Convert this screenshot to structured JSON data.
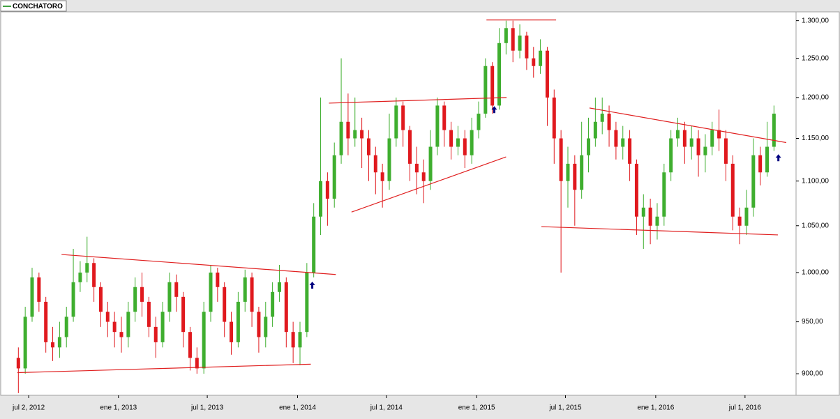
{
  "chart_data": {
    "type": "candlestick",
    "log": true,
    "grid": false,
    "legend": "top-left",
    "xlim": [
      "2012-05-06",
      "2016-10-13"
    ],
    "xticks": [
      {
        "value": "2012-07-02",
        "label": "jul 2, 2012"
      },
      {
        "value": "2013-01-01",
        "label": "ene 1, 2013"
      },
      {
        "value": "2013-07-01",
        "label": "jul 1, 2013"
      },
      {
        "value": "2014-01-01",
        "label": "ene 1, 2014"
      },
      {
        "value": "2014-07-01",
        "label": "jul 1, 2014"
      },
      {
        "value": "2015-01-01",
        "label": "ene 1, 2015"
      },
      {
        "value": "2015-07-01",
        "label": "jul 1, 2015"
      },
      {
        "value": "2016-01-01",
        "label": "ene 1, 2016"
      },
      {
        "value": "2016-07-01",
        "label": "jul 1, 2016"
      }
    ],
    "ylim": [
      880,
      1312
    ],
    "yticks": [
      {
        "value": 900,
        "label": "900,00"
      },
      {
        "value": 950,
        "label": "950,00"
      },
      {
        "value": 1000,
        "label": "1.000,00"
      },
      {
        "value": 1050,
        "label": "1.050,00"
      },
      {
        "value": 1100,
        "label": "1.100,00"
      },
      {
        "value": 1150,
        "label": "1.150,00"
      },
      {
        "value": 1200,
        "label": "1.200,00"
      },
      {
        "value": 1250,
        "label": "1.250,00"
      },
      {
        "value": 1300,
        "label": "1.300,00"
      }
    ],
    "x": [
      "2012-06-11",
      "2012-06-25",
      "2012-07-09",
      "2012-07-23",
      "2012-08-06",
      "2012-08-20",
      "2012-09-03",
      "2012-09-17",
      "2012-10-01",
      "2012-10-15",
      "2012-10-29",
      "2012-11-12",
      "2012-11-26",
      "2012-12-10",
      "2012-12-24",
      "2013-01-07",
      "2013-01-21",
      "2013-02-04",
      "2013-02-18",
      "2013-03-04",
      "2013-03-18",
      "2013-04-01",
      "2013-04-15",
      "2013-04-29",
      "2013-05-13",
      "2013-05-27",
      "2013-06-10",
      "2013-06-24",
      "2013-07-08",
      "2013-07-22",
      "2013-08-05",
      "2013-08-19",
      "2013-09-02",
      "2013-09-16",
      "2013-09-30",
      "2013-10-14",
      "2013-10-28",
      "2013-11-11",
      "2013-11-25",
      "2013-12-09",
      "2013-12-23",
      "2014-01-06",
      "2014-01-20",
      "2014-02-03",
      "2014-02-17",
      "2014-03-03",
      "2014-03-17",
      "2014-03-31",
      "2014-04-14",
      "2014-04-28",
      "2014-05-12",
      "2014-05-26",
      "2014-06-09",
      "2014-06-23",
      "2014-07-07",
      "2014-07-21",
      "2014-08-04",
      "2014-08-18",
      "2014-09-01",
      "2014-09-15",
      "2014-09-29",
      "2014-10-13",
      "2014-10-27",
      "2014-11-10",
      "2014-11-24",
      "2014-12-08",
      "2014-12-22",
      "2015-01-05",
      "2015-01-19",
      "2015-02-02",
      "2015-02-16",
      "2015-03-02",
      "2015-03-16",
      "2015-03-30",
      "2015-04-13",
      "2015-04-27",
      "2015-05-11",
      "2015-05-25",
      "2015-06-08",
      "2015-06-22",
      "2015-07-06",
      "2015-07-20",
      "2015-08-03",
      "2015-08-17",
      "2015-08-31",
      "2015-09-14",
      "2015-09-28",
      "2015-10-12",
      "2015-10-26",
      "2015-11-09",
      "2015-11-23",
      "2015-12-07",
      "2015-12-21",
      "2016-01-04",
      "2016-01-18",
      "2016-02-01",
      "2016-02-15",
      "2016-02-29",
      "2016-03-14",
      "2016-03-28",
      "2016-04-11",
      "2016-04-25",
      "2016-05-09",
      "2016-05-23",
      "2016-06-06",
      "2016-06-20",
      "2016-07-04",
      "2016-07-18",
      "2016-08-01",
      "2016-08-15",
      "2016-08-29"
    ],
    "series": [
      {
        "name": "CONCHATORO",
        "color": "#008000",
        "up_color": "#3fae2f",
        "down_color": "#e0191e",
        "open": [
          915,
          905,
          955,
          995,
          970,
          930,
          925,
          935,
          955,
          990,
          1000,
          1010,
          985,
          960,
          950,
          940,
          935,
          960,
          985,
          970,
          945,
          930,
          960,
          990,
          975,
          940,
          915,
          905,
          960,
          1000,
          985,
          950,
          930,
          970,
          995,
          960,
          935,
          955,
          980,
          990,
          940,
          925,
          940,
          1000,
          1060,
          1100,
          1080,
          1130,
          1170,
          1150,
          1160,
          1150,
          1130,
          1110,
          1100,
          1150,
          1190,
          1160,
          1120,
          1110,
          1100,
          1140,
          1190,
          1160,
          1140,
          1150,
          1130,
          1160,
          1180,
          1240,
          1190,
          1270,
          1290,
          1260,
          1280,
          1250,
          1240,
          1260,
          1200,
          1150,
          1100,
          1120,
          1090,
          1130,
          1150,
          1170,
          1180,
          1160,
          1140,
          1150,
          1120,
          1060,
          1070,
          1050,
          1060,
          1110,
          1150,
          1160,
          1140,
          1150,
          1130,
          1140,
          1160,
          1150,
          1120,
          1060,
          1050,
          1070,
          1130,
          1110,
          1140
        ],
        "high": [
          925,
          965,
          1005,
          1000,
          975,
          945,
          950,
          965,
          1025,
          1012,
          1038,
          1015,
          990,
          970,
          960,
          955,
          970,
          995,
          1000,
          975,
          955,
          970,
          1000,
          998,
          980,
          945,
          925,
          970,
          1008,
          1005,
          990,
          960,
          980,
          1003,
          1000,
          965,
          970,
          990,
          1008,
          995,
          950,
          950,
          1010,
          1075,
          1200,
          1110,
          1145,
          1250,
          1205,
          1200,
          1175,
          1160,
          1140,
          1120,
          1180,
          1200,
          1195,
          1165,
          1140,
          1125,
          1160,
          1200,
          1195,
          1170,
          1165,
          1160,
          1175,
          1195,
          1250,
          1245,
          1290,
          1300,
          1300,
          1295,
          1285,
          1265,
          1275,
          1265,
          1210,
          1160,
          1140,
          1130,
          1170,
          1175,
          1200,
          1200,
          1190,
          1170,
          1165,
          1160,
          1125,
          1085,
          1080,
          1075,
          1120,
          1160,
          1175,
          1170,
          1165,
          1160,
          1155,
          1170,
          1185,
          1160,
          1130,
          1070,
          1090,
          1150,
          1140,
          1170,
          1190
        ],
        "low": [
          882,
          900,
          950,
          960,
          920,
          912,
          915,
          925,
          950,
          980,
          990,
          970,
          945,
          935,
          925,
          920,
          925,
          950,
          955,
          935,
          915,
          925,
          950,
          960,
          925,
          903,
          900,
          900,
          950,
          970,
          935,
          918,
          925,
          960,
          945,
          920,
          925,
          945,
          970,
          925,
          910,
          908,
          935,
          995,
          1040,
          1050,
          1070,
          1120,
          1130,
          1140,
          1115,
          1100,
          1085,
          1070,
          1090,
          1140,
          1140,
          1100,
          1085,
          1075,
          1090,
          1130,
          1140,
          1125,
          1130,
          1115,
          1120,
          1150,
          1175,
          1180,
          1185,
          1255,
          1245,
          1250,
          1235,
          1225,
          1230,
          1165,
          1120,
          1000,
          1070,
          1050,
          1080,
          1110,
          1140,
          1155,
          1140,
          1125,
          1125,
          1100,
          1040,
          1025,
          1030,
          1035,
          1050,
          1100,
          1140,
          1120,
          1125,
          1105,
          1110,
          1130,
          1135,
          1100,
          1045,
          1030,
          1040,
          1060,
          1095,
          1105,
          1135
        ],
        "close": [
          905,
          955,
          995,
          970,
          930,
          925,
          935,
          955,
          990,
          1000,
          1010,
          985,
          960,
          950,
          940,
          935,
          960,
          985,
          970,
          945,
          930,
          960,
          990,
          975,
          940,
          915,
          905,
          960,
          1000,
          985,
          950,
          930,
          970,
          995,
          960,
          935,
          955,
          980,
          990,
          940,
          925,
          940,
          1000,
          1060,
          1100,
          1080,
          1130,
          1170,
          1150,
          1160,
          1150,
          1130,
          1110,
          1100,
          1150,
          1190,
          1160,
          1120,
          1110,
          1100,
          1140,
          1190,
          1160,
          1140,
          1150,
          1130,
          1160,
          1180,
          1240,
          1190,
          1270,
          1290,
          1260,
          1280,
          1250,
          1240,
          1260,
          1200,
          1150,
          1100,
          1120,
          1090,
          1130,
          1150,
          1170,
          1180,
          1160,
          1140,
          1150,
          1120,
          1060,
          1070,
          1050,
          1060,
          1110,
          1150,
          1160,
          1140,
          1150,
          1130,
          1140,
          1160,
          1150,
          1120,
          1060,
          1050,
          1070,
          1130,
          1110,
          1140,
          1180
        ]
      }
    ],
    "trendlines": {
      "color": "#e02020",
      "lines": [
        {
          "x": [
            "2012-06-09",
            "2014-01-28"
          ],
          "y": [
            901,
            909
          ]
        },
        {
          "x": [
            "2012-09-07",
            "2014-03-20"
          ],
          "y": [
            1019,
            998
          ]
        },
        {
          "x": [
            "2014-03-06",
            "2015-03-03"
          ],
          "y": [
            1193,
            1200
          ]
        },
        {
          "x": [
            "2014-04-21",
            "2015-03-02"
          ],
          "y": [
            1065,
            1128
          ]
        },
        {
          "x": [
            "2015-01-21",
            "2015-06-12"
          ],
          "y": [
            1301,
            1301
          ]
        },
        {
          "x": [
            "2015-05-13",
            "2016-09-06"
          ],
          "y": [
            1049,
            1040
          ]
        },
        {
          "x": [
            "2015-08-19",
            "2016-09-23"
          ],
          "y": [
            1187,
            1145
          ]
        }
      ]
    },
    "arrows": {
      "color": "#000080",
      "points": [
        {
          "x": "2014-01-31",
          "y": 987
        },
        {
          "x": "2015-02-06",
          "y": 1185
        },
        {
          "x": "2016-09-07",
          "y": 1127
        }
      ]
    }
  }
}
